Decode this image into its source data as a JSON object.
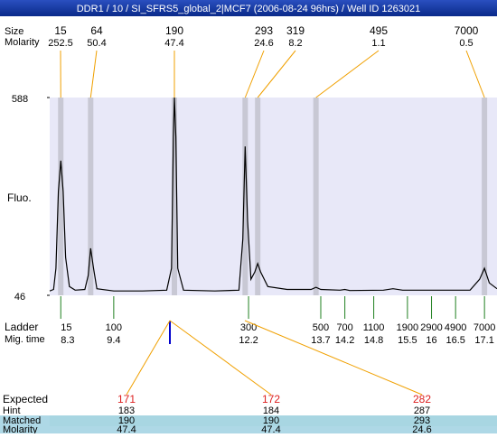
{
  "header": {
    "title": "DDR1 / 10 / SI_SFRS5_global_2|MCF7 (2006-08-24 96hrs) / Well ID 1263021"
  },
  "labels": {
    "size": "Size",
    "molarity": "Molarity",
    "fluo": "Fluo.",
    "ladder": "Ladder",
    "mig_time": "Mig. time"
  },
  "peaks": [
    {
      "size": 15,
      "molarity": 252.5,
      "mig": 8.3
    },
    {
      "size": 64,
      "molarity": 50.4,
      "mig": 8.92
    },
    {
      "size": 190,
      "molarity": 47.4,
      "mig": 10.66
    },
    {
      "size": 293,
      "molarity": 24.6,
      "mig": 12.13
    },
    {
      "size": 319,
      "molarity": 8.2,
      "mig": 12.39
    },
    {
      "size": 495,
      "molarity": 1.1,
      "mig": 13.6
    },
    {
      "size": 7000,
      "molarity": 0.5,
      "mig": 17.1
    }
  ],
  "ladder": [
    {
      "size": 15,
      "mig": 8.3
    },
    {
      "size": 100,
      "mig": 9.4
    },
    {
      "size": 300,
      "mig": 12.2
    },
    {
      "size": 500,
      "mig": 13.7
    },
    {
      "size": 700,
      "mig": 14.2
    },
    {
      "size": 1100,
      "mig": 14.8
    },
    {
      "size": 1900,
      "mig": 15.5
    },
    {
      "size": 2900,
      "mig": 16
    },
    {
      "size": 4900,
      "mig": 16.5
    },
    {
      "size": 7000,
      "mig": 17.1
    }
  ],
  "chart_data": {
    "type": "line",
    "x": [
      8.07,
      8.15,
      8.2,
      8.25,
      8.3,
      8.35,
      8.4,
      8.48,
      8.6,
      8.8,
      8.87,
      8.92,
      8.98,
      9.05,
      9.4,
      10,
      10.5,
      10.6,
      10.64,
      10.66,
      10.69,
      10.73,
      10.85,
      11.5,
      12.0,
      12.08,
      12.13,
      12.18,
      12.25,
      12.33,
      12.39,
      12.45,
      12.6,
      13.0,
      13.5,
      13.6,
      13.7,
      14.1,
      14.2,
      14.3,
      15.0,
      15.2,
      15.4,
      16.8,
      17.0,
      17.1,
      17.2,
      17.36
    ],
    "series": [
      {
        "name": "Fluo.",
        "color": "#000000",
        "values": [
          58,
          62,
          120,
          330,
          415,
          330,
          150,
          70,
          60,
          62,
          100,
          175,
          120,
          64,
          58,
          58,
          60,
          120,
          480,
          588,
          480,
          120,
          60,
          58,
          60,
          200,
          454,
          250,
          90,
          110,
          133,
          110,
          70,
          62,
          62,
          68,
          62,
          60,
          62,
          59,
          60,
          64,
          60,
          60,
          90,
          120,
          80,
          64
        ]
      }
    ],
    "xlim": [
      8.07,
      17.36
    ],
    "ylim": [
      46,
      588
    ],
    "yticks": [
      46,
      588
    ]
  },
  "expected": {
    "row_labels": {
      "expected": "Expected",
      "hint": "Hint",
      "matched": "Matched",
      "molarity": "Molarity"
    },
    "columns": [
      {
        "expected": 171,
        "hint": 183,
        "matched": 190,
        "molarity": 47.4
      },
      {
        "expected": 172,
        "hint": 184,
        "matched": 190,
        "molarity": 47.4
      },
      {
        "expected": 282,
        "hint": 287,
        "matched": 293,
        "molarity": 24.6
      }
    ]
  }
}
